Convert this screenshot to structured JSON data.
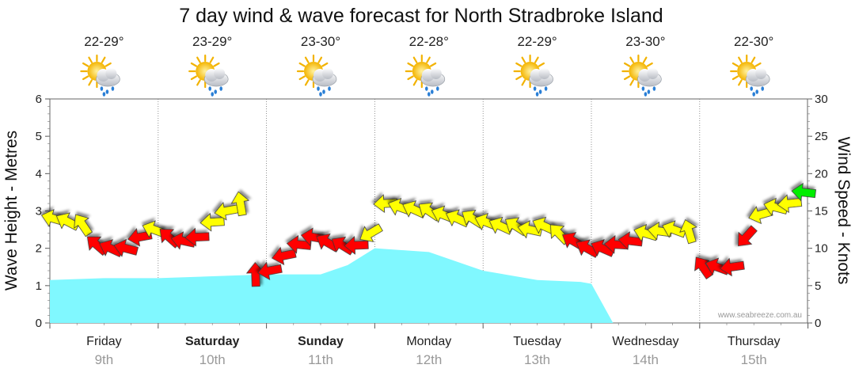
{
  "chart_data": {
    "type": "area",
    "title": "7 day wind & wave forecast for North Stradbroke Island",
    "ylabel_left": "Wave Height - Metres",
    "ylabel_right": "Wind Speed - Knots",
    "ylim_left": [
      0,
      6
    ],
    "ylim_right": [
      0,
      30
    ],
    "yticks_left": [
      "0",
      "1",
      "2",
      "3",
      "4",
      "5",
      "6"
    ],
    "yticks_right": [
      "0",
      "5",
      "10",
      "15",
      "20",
      "25",
      "30"
    ],
    "days": [
      {
        "name": "Friday",
        "date": "9th",
        "bold": false,
        "temp": "22-29°",
        "weather": "partly-cloudy-showers-icon"
      },
      {
        "name": "Saturday",
        "date": "10th",
        "bold": true,
        "temp": "23-29°",
        "weather": "partly-cloudy-showers-icon"
      },
      {
        "name": "Sunday",
        "date": "11th",
        "bold": true,
        "temp": "23-30°",
        "weather": "partly-cloudy-showers-icon"
      },
      {
        "name": "Monday",
        "date": "12th",
        "bold": false,
        "temp": "22-28°",
        "weather": "partly-cloudy-showers-icon"
      },
      {
        "name": "Tuesday",
        "date": "13th",
        "bold": false,
        "temp": "22-29°",
        "weather": "partly-cloudy-showers-icon"
      },
      {
        "name": "Wednesday",
        "date": "14th",
        "bold": false,
        "temp": "23-30°",
        "weather": "partly-cloudy-showers-icon"
      },
      {
        "name": "Thursday",
        "date": "15th",
        "bold": false,
        "temp": "22-30°",
        "weather": "partly-cloudy-showers-icon"
      }
    ],
    "wave_series": {
      "name": "Wave Height (m)",
      "x_days": [
        0,
        0.5,
        1.0,
        1.5,
        2.0,
        2.5,
        2.75,
        3.0,
        3.5,
        4.0,
        4.5,
        4.9,
        5.0,
        5.2
      ],
      "values": [
        1.15,
        1.2,
        1.2,
        1.25,
        1.3,
        1.3,
        1.55,
        2.0,
        1.9,
        1.4,
        1.15,
        1.1,
        1.05,
        0
      ],
      "color": "#80f8ff"
    },
    "wind_series": {
      "name": "Wind Speed (knots)",
      "x_days": [
        0.0,
        0.13,
        0.27,
        0.4,
        0.53,
        0.67,
        0.8,
        0.93,
        1.07,
        1.2,
        1.33,
        1.47,
        1.6,
        1.73,
        1.87,
        2.0,
        2.13,
        2.27,
        2.4,
        2.53,
        2.67,
        2.8,
        2.93,
        3.07,
        3.2,
        3.33,
        3.47,
        3.6,
        3.73,
        3.87,
        4.0,
        4.13,
        4.27,
        4.4,
        4.53,
        4.67,
        4.8,
        4.93,
        5.07,
        5.2,
        5.33,
        5.47,
        5.6,
        5.73,
        5.87,
        6.0,
        6.13,
        6.27,
        6.4,
        6.53,
        6.67,
        6.8,
        6.93
      ],
      "values": [
        14,
        13.6,
        13.2,
        10.5,
        10,
        10,
        11.5,
        12.5,
        11.5,
        11,
        11.5,
        13.5,
        15,
        16,
        6.5,
        7,
        9,
        10.5,
        11.5,
        10.8,
        10.4,
        10.4,
        12,
        16,
        15.5,
        15.2,
        15,
        14.5,
        14,
        14,
        13.5,
        13,
        13,
        12.5,
        13,
        12,
        11,
        10,
        10,
        10.5,
        11,
        12,
        12.3,
        12.5,
        12.3,
        7.5,
        7.5,
        7.5,
        11.5,
        14.5,
        15.5,
        16,
        17.5
      ],
      "colors": {
        "high": "#00ee00",
        "mid": "#ffff00",
        "low": "#ff0000"
      },
      "thresholds": {
        "high": 17,
        "low": 12
      }
    },
    "credit": "www.seabreeze.com.au"
  }
}
